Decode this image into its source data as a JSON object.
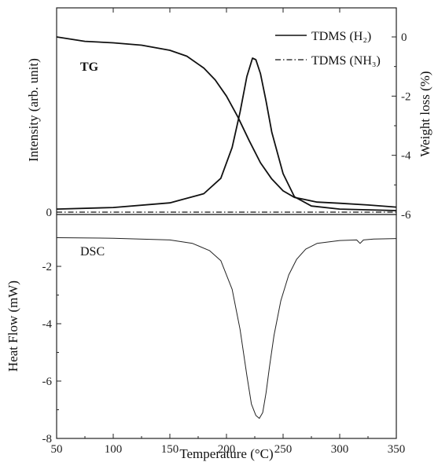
{
  "chart_data": [
    {
      "type": "line",
      "panel": "top",
      "label": "TG",
      "ylabel": "Intensity (arb. unit)",
      "y2label": "Weight loss (%)",
      "xlim": [
        50,
        350
      ],
      "y2lim": [
        -6,
        0.5
      ],
      "y_ticks": [
        "0"
      ],
      "y2_ticks": [
        0,
        -2,
        -4,
        -6
      ],
      "legend": [
        "TDMS (H₂)",
        "TDMS (NH₃)"
      ],
      "legend_position": "top-right",
      "series": [
        {
          "name": "TDMS (H₂)",
          "style": "solid",
          "x": [
            50,
            100,
            150,
            180,
            195,
            205,
            212,
            218,
            223,
            226,
            230,
            235,
            240,
            250,
            260,
            275,
            300,
            350
          ],
          "y": [
            0.02,
            0.03,
            0.06,
            0.12,
            0.22,
            0.42,
            0.65,
            0.88,
            1.0,
            0.99,
            0.9,
            0.72,
            0.52,
            0.25,
            0.1,
            0.04,
            0.02,
            0.01
          ]
        },
        {
          "name": "TDMS (NH₃)",
          "style": "dashdot",
          "x": [
            50,
            350
          ],
          "y": [
            0.0,
            0.0
          ]
        },
        {
          "name": "TG",
          "style": "solid",
          "axis": "right",
          "x": [
            50,
            75,
            100,
            125,
            150,
            165,
            180,
            190,
            200,
            210,
            220,
            230,
            240,
            250,
            260,
            280,
            300,
            325,
            350
          ],
          "y": [
            0,
            -0.15,
            -0.2,
            -0.28,
            -0.45,
            -0.65,
            -1.05,
            -1.45,
            -2.0,
            -2.7,
            -3.5,
            -4.25,
            -4.8,
            -5.2,
            -5.42,
            -5.58,
            -5.62,
            -5.68,
            -5.75
          ]
        }
      ]
    },
    {
      "type": "line",
      "panel": "bottom",
      "label": "DSC",
      "xlabel": "Temperature (°C)",
      "ylabel": "Heat Flow (mW)",
      "xlim": [
        50,
        350
      ],
      "ylim": [
        -8,
        -0.5
      ],
      "x_ticks": [
        50,
        100,
        150,
        200,
        250,
        300,
        350
      ],
      "y_ticks": [
        -2,
        -4,
        -6,
        -8
      ],
      "series": [
        {
          "name": "DSC",
          "x": [
            50,
            100,
            150,
            170,
            185,
            195,
            205,
            212,
            218,
            222,
            226,
            229,
            232,
            235,
            238,
            242,
            248,
            255,
            262,
            270,
            280,
            300,
            315,
            318,
            321,
            330,
            350
          ],
          "y": [
            -1.0,
            -1.02,
            -1.08,
            -1.2,
            -1.45,
            -1.8,
            -2.8,
            -4.2,
            -5.8,
            -6.8,
            -7.2,
            -7.3,
            -7.1,
            -6.4,
            -5.5,
            -4.4,
            -3.2,
            -2.3,
            -1.75,
            -1.4,
            -1.2,
            -1.1,
            -1.08,
            -1.2,
            -1.08,
            -1.05,
            -1.03
          ]
        }
      ]
    }
  ]
}
